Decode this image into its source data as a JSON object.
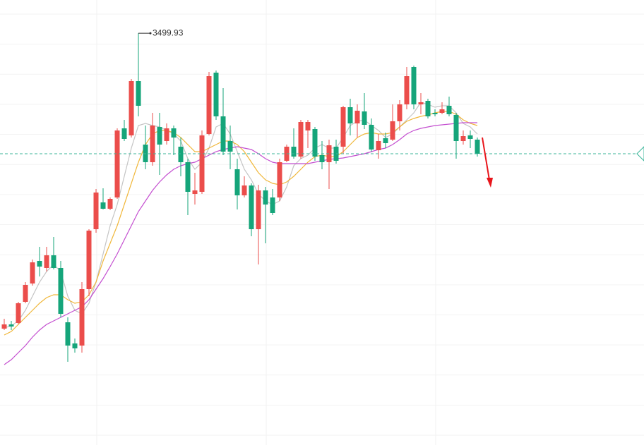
{
  "chart_data": {
    "type": "candlestick",
    "open": [
      3290.5,
      3293.5,
      3294.5,
      3309.5,
      3322.5,
      3338.5,
      3333.5,
      3342.5,
      3333.5,
      3295,
      3280,
      3278.5,
      3318.5,
      3361,
      3380,
      3375.5,
      3383.5,
      3432.5,
      3427.5,
      3466,
      3421,
      3408.5,
      3433.5,
      3423.5,
      3432.5,
      3419.5,
      3408.5,
      3386,
      3387.5,
      3428.5,
      3472,
      3441,
      3423.5,
      3403.5,
      3385,
      3392,
      3361,
      3388.5,
      3383.5,
      3383.5,
      3409.5,
      3419.5,
      3412.5,
      3431,
      3432,
      3413.5,
      3408.5,
      3419.5,
      3419.5,
      3447.5,
      3436,
      3444.5,
      3435,
      3417,
      3425.5,
      3424.5,
      3437.5,
      3449.5,
      3476,
      3449.5,
      3452,
      3443.5,
      3443.5,
      3448.5,
      3442,
      3423.5,
      3427.5,
      3424.5
    ],
    "high": [
      3297.5,
      3296,
      3309.5,
      3323.5,
      3339.5,
      3348.5,
      3348.5,
      3355.5,
      3338.5,
      3298.5,
      3283.5,
      3323.5,
      3361,
      3389.5,
      3390,
      3383.5,
      3432.5,
      3438.5,
      3467.5,
      3499.93,
      3434.5,
      3443.5,
      3443.5,
      3436,
      3434.5,
      3426,
      3411,
      3401,
      3431,
      3472.5,
      3473.5,
      3461,
      3434.5,
      3411,
      3398.5,
      3393.5,
      3392.5,
      3391,
      3389.5,
      3411,
      3421,
      3432.5,
      3438.5,
      3438.5,
      3433.5,
      3423.5,
      3424.5,
      3424.5,
      3448.5,
      3453.5,
      3449.5,
      3457.5,
      3439.5,
      3428.5,
      3429.5,
      3449.5,
      3452.5,
      3476,
      3477,
      3457.5,
      3453.5,
      3446,
      3451,
      3455,
      3443.5,
      3431,
      3431,
      3426
    ],
    "low": [
      3289.5,
      3289.5,
      3293.5,
      3308.5,
      3321,
      3327.5,
      3331,
      3332.5,
      3298.5,
      3267,
      3273.5,
      3273.5,
      3313.5,
      3358.5,
      3375,
      3374.5,
      3382.5,
      3423.5,
      3426,
      3441,
      3403.5,
      3406,
      3399.5,
      3421,
      3413.5,
      3398.5,
      3371,
      3378.5,
      3386,
      3427.5,
      3438.5,
      3413.5,
      3403.5,
      3375,
      3383.5,
      3356,
      3336,
      3351,
      3371,
      3381,
      3408.5,
      3411,
      3411,
      3418.5,
      3409.5,
      3403.5,
      3389.5,
      3407.5,
      3414.5,
      3427.5,
      3426,
      3432,
      3416,
      3411,
      3418.5,
      3423.5,
      3431,
      3446,
      3446,
      3442.5,
      3439.5,
      3441,
      3442.5,
      3441,
      3411,
      3421,
      3418.5,
      3412.5
    ],
    "close": [
      3293.5,
      3292,
      3308.5,
      3321.5,
      3337.5,
      3334.5,
      3342.5,
      3333.5,
      3301,
      3278.5,
      3276.5,
      3318.5,
      3360,
      3387,
      3375.5,
      3382.5,
      3431,
      3425,
      3466,
      3448.5,
      3408.5,
      3434.5,
      3421,
      3432.5,
      3426,
      3408.5,
      3387.5,
      3388.5,
      3427.5,
      3469.5,
      3441,
      3416,
      3416,
      3385,
      3392,
      3361,
      3388.5,
      3378.5,
      3372.5,
      3408.5,
      3419.5,
      3412.5,
      3437,
      3437,
      3412.5,
      3408.5,
      3420.5,
      3409.5,
      3447.5,
      3436,
      3445,
      3435,
      3417.5,
      3423.5,
      3422,
      3437.5,
      3449.5,
      3469.5,
      3449.5,
      3451,
      3441,
      3442.5,
      3446,
      3442.5,
      3423.5,
      3427,
      3425,
      3414.5
    ],
    "up_color": "#eb4d4b",
    "down_color": "#15a57a",
    "moving_averages": [
      {
        "color": "#c4c4c4",
        "values": [
          3291,
          3292.5,
          3296,
          3303.5,
          3313.5,
          3323.5,
          3331,
          3336,
          3331,
          3313.5,
          3303.5,
          3301,
          3308.5,
          3323.5,
          3343.5,
          3363.5,
          3378.5,
          3398.5,
          3418.5,
          3434.5,
          3436,
          3434.5,
          3433.5,
          3431,
          3428.5,
          3423.5,
          3411,
          3403.5,
          3408.5,
          3418.5,
          3433.5,
          3436,
          3428.5,
          3416,
          3403.5,
          3396,
          3386,
          3381,
          3378.5,
          3381,
          3391,
          3406,
          3411,
          3413.5,
          3418.5,
          3421,
          3418.5,
          3418.5,
          3426,
          3434.5,
          3437.5,
          3438.5,
          3434.5,
          3431,
          3426,
          3428.5,
          3433.5,
          3438.5,
          3443.5,
          3451,
          3449.5,
          3447.5,
          3448.5,
          3448.5,
          3443.5,
          3436,
          3433.5,
          3428.5
        ]
      },
      {
        "color": "#f0b73a",
        "values": [
          3286,
          3288.5,
          3293.5,
          3298.5,
          3303.5,
          3308.5,
          3312.5,
          3314.5,
          3314.5,
          3311,
          3308.5,
          3309.5,
          3314.5,
          3323.5,
          3338.5,
          3351,
          3363.5,
          3378.5,
          3393.5,
          3408.5,
          3421,
          3428.5,
          3431,
          3431,
          3429.5,
          3426,
          3421,
          3416,
          3416,
          3418.5,
          3421,
          3423.5,
          3423.5,
          3421,
          3416,
          3408.5,
          3401,
          3396,
          3393.5,
          3392.5,
          3394.5,
          3398.5,
          3403.5,
          3408.5,
          3412.5,
          3413.5,
          3412.5,
          3412.5,
          3416,
          3421,
          3426,
          3428.5,
          3429.5,
          3428.5,
          3428.5,
          3429.5,
          3433.5,
          3437.5,
          3439.5,
          3441,
          3442,
          3443.5,
          3444.5,
          3444.5,
          3442.5,
          3438.5,
          3436,
          3434.5
        ]
      },
      {
        "color": "#c44fd0",
        "values": [
          3265,
          3268.5,
          3273.5,
          3278.5,
          3284.5,
          3289.5,
          3293.5,
          3296,
          3298.5,
          3301,
          3303.5,
          3306,
          3311,
          3318.5,
          3326,
          3334.5,
          3343.5,
          3353.5,
          3363.5,
          3373.5,
          3381,
          3388.5,
          3394.5,
          3399.5,
          3403.5,
          3406,
          3407.5,
          3408.5,
          3411,
          3413.5,
          3416,
          3417.5,
          3418.5,
          3419.5,
          3418.5,
          3417.5,
          3414.5,
          3411,
          3408.5,
          3407.5,
          3407.5,
          3407.5,
          3407.5,
          3407.5,
          3408.5,
          3409.5,
          3410.5,
          3411,
          3411.5,
          3412.5,
          3413.5,
          3414.5,
          3416,
          3417.5,
          3418.5,
          3421,
          3424.5,
          3428.5,
          3431,
          3432.5,
          3433.5,
          3434.5,
          3435,
          3435.5,
          3436,
          3436.5,
          3436.5,
          3436.5
        ]
      }
    ],
    "price_line": 3414.5,
    "price_line_color": "#3bb59a",
    "ylim": [
      3208,
      3523.5
    ],
    "grid": true
  }
}
